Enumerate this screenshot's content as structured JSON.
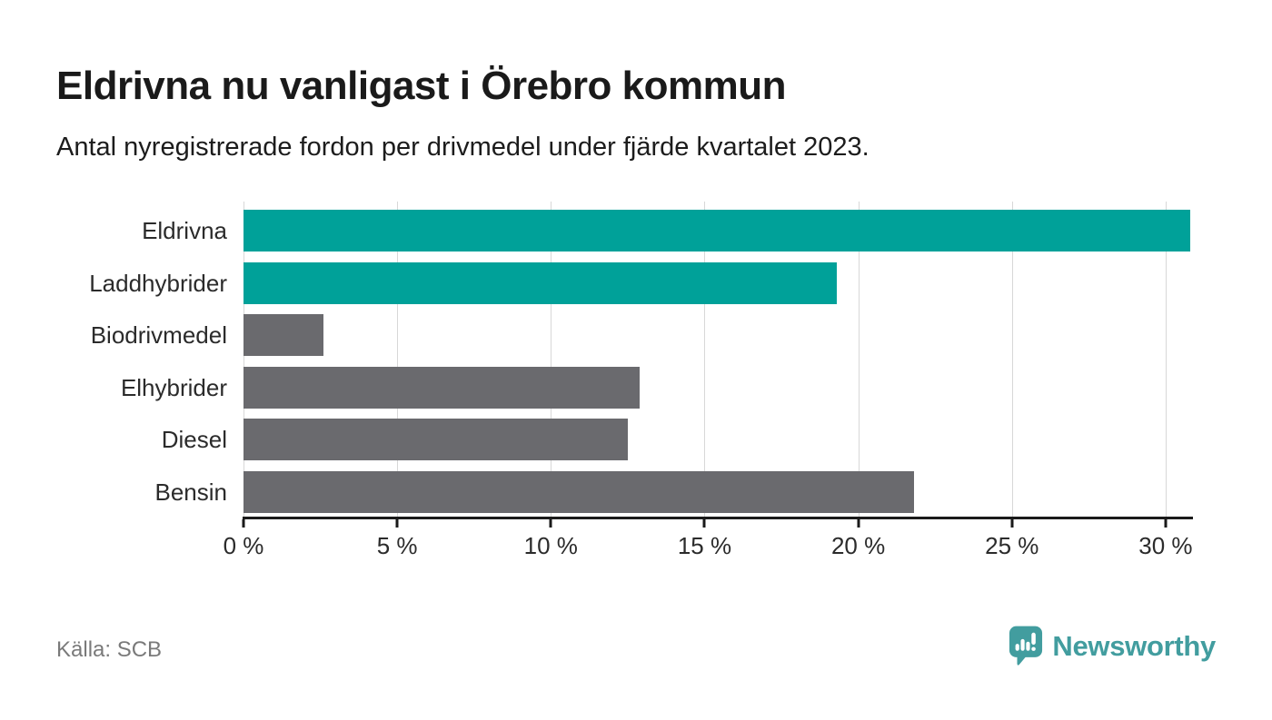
{
  "header": {
    "title": "Eldrivna nu vanligast i Örebro kommun",
    "subtitle": "Antal nyregistrerade fordon per drivmedel under fjärde kvartalet 2023."
  },
  "chart_data": {
    "type": "bar",
    "orientation": "horizontal",
    "title": "Eldrivna nu vanligast i Örebro kommun",
    "subtitle": "Antal nyregistrerade fordon per drivmedel under fjärde kvartalet 2023.",
    "categories": [
      "Eldrivna",
      "Laddhybrider",
      "Biodrivmedel",
      "Elhybrider",
      "Diesel",
      "Bensin"
    ],
    "values": [
      30.8,
      19.3,
      2.6,
      12.9,
      12.5,
      21.8
    ],
    "unit": "%",
    "bar_colors": [
      "#00a199",
      "#00a199",
      "#6a6a6e",
      "#6a6a6e",
      "#6a6a6e",
      "#6a6a6e"
    ],
    "xlabel": "",
    "ylabel": "",
    "xlim": [
      0,
      30.83
    ],
    "x_ticks": [
      {
        "value": 0,
        "label": "0 %"
      },
      {
        "value": 5,
        "label": "5 %"
      },
      {
        "value": 10,
        "label": "10 %"
      },
      {
        "value": 15,
        "label": "15 %"
      },
      {
        "value": 20,
        "label": "20 %"
      },
      {
        "value": 25,
        "label": "25 %"
      },
      {
        "value": 30,
        "label": "30 %"
      }
    ],
    "grid": "vertical",
    "legend": "none"
  },
  "footer": {
    "source": "Källa: SCB",
    "brand": "Newsworthy"
  },
  "colors": {
    "accent_teal": "#00a199",
    "bar_gray": "#6a6a6e",
    "logo_teal": "#429d9f",
    "gridline": "#d8d8d8",
    "axis": "#1a1a1a"
  },
  "icons": {
    "brand_icon": "newsworthy-speech-bubble-bar-chart"
  }
}
